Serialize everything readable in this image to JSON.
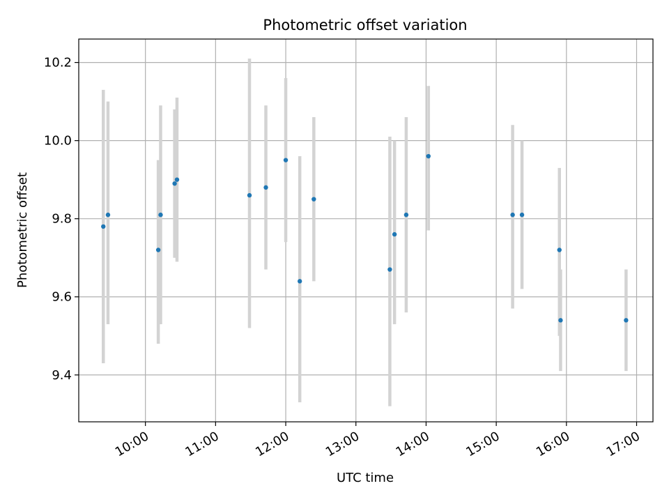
{
  "chart_data": {
    "type": "scatter",
    "title": "Photometric offset variation",
    "xlabel": "UTC time",
    "ylabel": "Photometric offset",
    "x_axis_type": "time",
    "xlim": [
      "09:03",
      "17:14"
    ],
    "ylim": [
      9.28,
      10.26
    ],
    "x_ticks": [
      "10:00",
      "11:00",
      "12:00",
      "13:00",
      "14:00",
      "15:00",
      "16:00",
      "17:00"
    ],
    "y_ticks": [
      9.4,
      9.6,
      9.8,
      10.0,
      10.2
    ],
    "y_tick_labels": [
      "9.4",
      "9.6",
      "9.8",
      "10.0",
      "10.2"
    ],
    "grid": true,
    "legend": false,
    "colors": {
      "marker": "#1f77b4",
      "errorbar": "#d3d3d3",
      "grid": "#b0b0b0"
    },
    "points": [
      {
        "x": "09:24",
        "y": 9.78,
        "ylow": 9.43,
        "yhigh": 10.13
      },
      {
        "x": "09:28",
        "y": 9.81,
        "ylow": 9.53,
        "yhigh": 10.1
      },
      {
        "x": "10:11",
        "y": 9.72,
        "ylow": 9.48,
        "yhigh": 9.95
      },
      {
        "x": "10:13",
        "y": 9.81,
        "ylow": 9.53,
        "yhigh": 10.09
      },
      {
        "x": "10:25",
        "y": 9.89,
        "ylow": 9.7,
        "yhigh": 10.08
      },
      {
        "x": "10:27",
        "y": 9.9,
        "ylow": 9.69,
        "yhigh": 10.11
      },
      {
        "x": "11:29",
        "y": 9.86,
        "ylow": 9.52,
        "yhigh": 10.21
      },
      {
        "x": "11:43",
        "y": 9.88,
        "ylow": 9.67,
        "yhigh": 10.09
      },
      {
        "x": "12:00",
        "y": 9.95,
        "ylow": 9.74,
        "yhigh": 10.16
      },
      {
        "x": "12:12",
        "y": 9.64,
        "ylow": 9.33,
        "yhigh": 9.96
      },
      {
        "x": "12:24",
        "y": 9.85,
        "ylow": 9.64,
        "yhigh": 10.06
      },
      {
        "x": "13:29",
        "y": 9.67,
        "ylow": 9.32,
        "yhigh": 10.01
      },
      {
        "x": "13:33",
        "y": 9.76,
        "ylow": 9.53,
        "yhigh": 10.0
      },
      {
        "x": "13:43",
        "y": 9.81,
        "ylow": 9.56,
        "yhigh": 10.06
      },
      {
        "x": "14:02",
        "y": 9.96,
        "ylow": 9.77,
        "yhigh": 10.14
      },
      {
        "x": "15:14",
        "y": 9.81,
        "ylow": 9.57,
        "yhigh": 10.04
      },
      {
        "x": "15:22",
        "y": 9.81,
        "ylow": 9.62,
        "yhigh": 10.0
      },
      {
        "x": "15:54",
        "y": 9.72,
        "ylow": 9.5,
        "yhigh": 9.93
      },
      {
        "x": "15:55",
        "y": 9.54,
        "ylow": 9.41,
        "yhigh": 9.67
      },
      {
        "x": "16:51",
        "y": 9.54,
        "ylow": 9.41,
        "yhigh": 9.67
      }
    ]
  }
}
